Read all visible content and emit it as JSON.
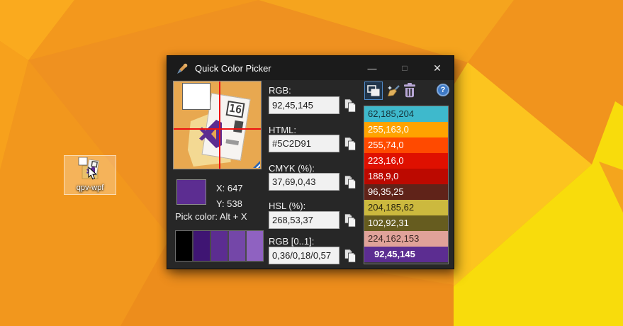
{
  "desktop": {
    "icon_label": "qpv-wpf"
  },
  "window": {
    "title": "Quick Color Picker",
    "controls": {
      "minimize": "—",
      "maximize": "□",
      "close": "✕"
    }
  },
  "picker": {
    "preview_doc_text": "16",
    "coords": {
      "x": "X: 647",
      "y": "Y: 538"
    },
    "pick_hint": "Pick color: Alt + X",
    "current_hex": "#5C2D91",
    "palette": [
      "#000000",
      "#3F1573",
      "#5C2D91",
      "#7447A8",
      "#8F62C1"
    ],
    "fields": {
      "rgb": {
        "label": "RGB:",
        "value": "92,45,145"
      },
      "html": {
        "label": "HTML:",
        "value": "#5C2D91"
      },
      "cmyk": {
        "label": "CMYK (%):",
        "value": "37,69,0,43"
      },
      "hsl": {
        "label": "HSL (%):",
        "value": "268,53,37"
      },
      "rgb01": {
        "label": "RGB [0..1]:",
        "value": "0,36/0,18/0,57"
      }
    },
    "toolbar_icons": [
      "copy-list-icon",
      "clear-broom-icon",
      "trash-icon",
      "help-icon"
    ],
    "help_glyph": "?",
    "history": [
      {
        "label": "62,185,204",
        "bg": "#3EB9CC",
        "fg": "#15333A",
        "selected": false
      },
      {
        "label": "255,163,0",
        "bg": "#FFA300",
        "fg": "#FFFFFF",
        "selected": false
      },
      {
        "label": "255,74,0",
        "bg": "#FF4A00",
        "fg": "#FFFFFF",
        "selected": false
      },
      {
        "label": "223,16,0",
        "bg": "#DF1000",
        "fg": "#FFFFFF",
        "selected": false
      },
      {
        "label": "188,9,0",
        "bg": "#BC0900",
        "fg": "#FFFFFF",
        "selected": false
      },
      {
        "label": "96,35,25",
        "bg": "#602319",
        "fg": "#FFFFFF",
        "selected": false
      },
      {
        "label": "204,185,62",
        "bg": "#CCB93E",
        "fg": "#2B2710",
        "selected": false
      },
      {
        "label": "102,92,31",
        "bg": "#665C1F",
        "fg": "#FFFFFF",
        "selected": false
      },
      {
        "label": "224,162,153",
        "bg": "#E0A299",
        "fg": "#3A2522",
        "selected": false
      },
      {
        "label": "92,45,145",
        "bg": "#5C2D91",
        "fg": "#FFFFFF",
        "selected": true
      }
    ]
  },
  "wallpaper": {
    "base": "#F0931D",
    "f1": "#FAAA1E",
    "f2": "#F7A11C",
    "f3": "#F3981D",
    "f4": "#EF9120",
    "f5": "#F2971D",
    "f6": "#ED8D1C",
    "f7": "#F5A41E",
    "f8": "#F1941D",
    "f9": "#FCC41F",
    "f10": "#F8DC0C",
    "f11": "#F4A51D"
  }
}
